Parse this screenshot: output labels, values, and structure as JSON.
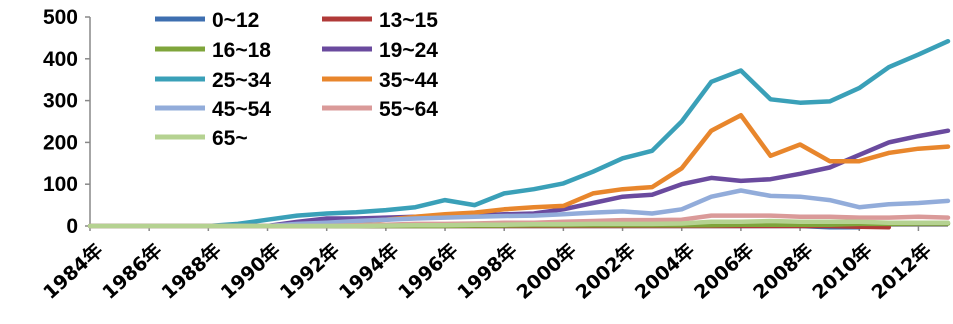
{
  "chart_data": {
    "type": "line",
    "title": "",
    "xlabel": "",
    "ylabel": "",
    "ylim": [
      0,
      500
    ],
    "yticks": [
      "0",
      "100",
      "200",
      "300",
      "400",
      "500"
    ],
    "x": [
      1984,
      1985,
      1986,
      1987,
      1988,
      1989,
      1990,
      1991,
      1992,
      1993,
      1994,
      1995,
      1996,
      1997,
      1998,
      1999,
      2000,
      2001,
      2002,
      2003,
      2004,
      2005,
      2006,
      2007,
      2008,
      2009,
      2010,
      2011,
      2012,
      2013
    ],
    "xtick_labels": [
      "1984年",
      "1986年",
      "1988年",
      "1990年",
      "1992年",
      "1994年",
      "1996年",
      "1998年",
      "2000年",
      "2002年",
      "2004年",
      "2006年",
      "2008年",
      "2010年",
      "2012年"
    ],
    "grid": false,
    "legend_position": "top-left",
    "series": [
      {
        "name": "0~12",
        "color": "#3E6FB0",
        "values": [
          0,
          0,
          0,
          0,
          0,
          0,
          0,
          0,
          0,
          0,
          0,
          0,
          0,
          0,
          0,
          0,
          0,
          0,
          0,
          0,
          0,
          0,
          0,
          0,
          0,
          -3,
          -3,
          null,
          null,
          null
        ]
      },
      {
        "name": "13~15",
        "color": "#B03A38",
        "values": [
          0,
          0,
          0,
          0,
          0,
          0,
          0,
          0,
          0,
          0,
          0,
          0,
          0,
          0,
          0,
          0,
          0,
          0,
          0,
          0,
          0,
          0,
          0,
          0,
          0,
          0,
          -2,
          -3,
          null,
          null
        ]
      },
      {
        "name": "16~18",
        "color": "#7FA53B",
        "values": [
          0,
          0,
          0,
          0,
          0,
          0,
          0,
          0,
          0,
          0,
          0,
          0,
          0,
          1,
          1,
          2,
          2,
          2,
          2,
          2,
          2,
          2,
          3,
          3,
          3,
          3,
          5,
          5,
          6,
          6
        ]
      },
      {
        "name": "19~24",
        "color": "#6A4A9E",
        "values": [
          0,
          0,
          0,
          0,
          0,
          0,
          0,
          10,
          18,
          18,
          20,
          22,
          24,
          25,
          28,
          30,
          40,
          55,
          70,
          75,
          100,
          115,
          108,
          112,
          125,
          140,
          170,
          200,
          215,
          228
        ]
      },
      {
        "name": "25~34",
        "color": "#3AA0B8",
        "values": [
          0,
          0,
          0,
          0,
          0,
          5,
          15,
          25,
          30,
          33,
          38,
          45,
          62,
          50,
          78,
          88,
          102,
          130,
          162,
          180,
          250,
          345,
          372,
          303,
          295,
          298,
          330,
          380,
          410,
          442
        ]
      },
      {
        "name": "35~44",
        "color": "#E8862C",
        "values": [
          0,
          0,
          0,
          0,
          0,
          0,
          0,
          0,
          5,
          10,
          15,
          22,
          28,
          32,
          40,
          45,
          48,
          78,
          88,
          93,
          138,
          228,
          265,
          168,
          195,
          155,
          155,
          175,
          185,
          190
        ]
      },
      {
        "name": "45~54",
        "color": "#92ACDA",
        "values": [
          0,
          0,
          0,
          0,
          0,
          0,
          0,
          5,
          8,
          12,
          15,
          18,
          20,
          22,
          24,
          25,
          28,
          32,
          35,
          30,
          40,
          70,
          85,
          72,
          70,
          62,
          45,
          52,
          55,
          60
        ]
      },
      {
        "name": "55~64",
        "color": "#DA9A99",
        "values": [
          0,
          0,
          0,
          0,
          0,
          0,
          0,
          0,
          0,
          2,
          3,
          5,
          5,
          6,
          8,
          8,
          10,
          12,
          14,
          14,
          15,
          25,
          25,
          25,
          22,
          22,
          20,
          20,
          22,
          20
        ]
      },
      {
        "name": "65~",
        "color": "#B5D291",
        "values": [
          0,
          0,
          0,
          0,
          0,
          0,
          0,
          0,
          0,
          0,
          1,
          2,
          2,
          3,
          3,
          4,
          4,
          5,
          5,
          5,
          6,
          10,
          10,
          12,
          10,
          10,
          10,
          8,
          8,
          8
        ]
      }
    ]
  }
}
